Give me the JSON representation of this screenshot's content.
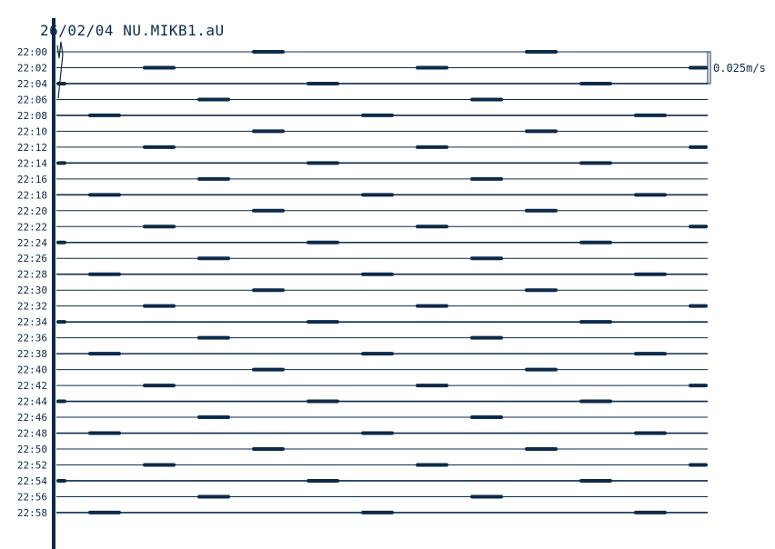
{
  "chart_data": {
    "type": "line",
    "title": "26/02/04  NU.MIKB1.aU",
    "trace_start_times": [
      "22:00",
      "22:02",
      "22:04",
      "22:06",
      "22:08",
      "22:10",
      "22:12",
      "22:14",
      "22:16",
      "22:18",
      "22:20",
      "22:22",
      "22:24",
      "22:26",
      "22:28",
      "22:30",
      "22:32",
      "22:34",
      "22:36",
      "22:38",
      "22:40",
      "22:42",
      "22:44",
      "22:46",
      "22:48",
      "22:50",
      "22:52",
      "22:54",
      "22:56",
      "22:58"
    ],
    "trace_minutes": 2,
    "scale_label": "0.025m/s",
    "color": "#0d2a4a"
  }
}
